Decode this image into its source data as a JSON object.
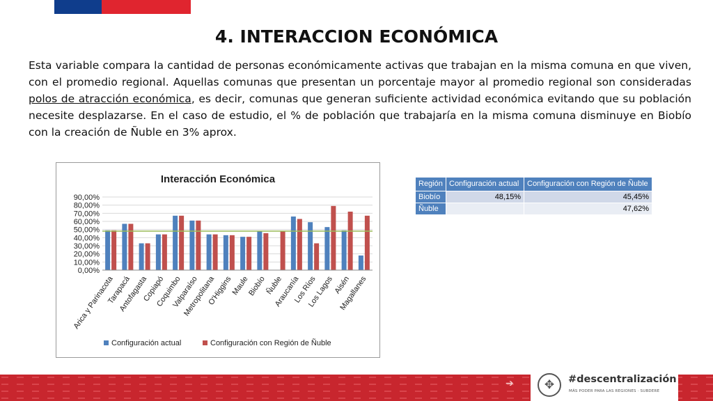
{
  "header": {
    "title": "4. INTERACCION ECONÓMICA"
  },
  "body": {
    "text_before_link": "Esta variable compara la cantidad de personas económicamente activas que trabajan en la misma comuna en que viven, con el promedio regional. Aquellas comunas que presentan un porcentaje mayor al promedio regional son consideradas ",
    "link_text": "polos de atracción económica",
    "text_after_link": ", es decir, comunas que generan suficiente actividad económica evitando que su población necesite desplazarse.    En el caso de estudio, el % de población que trabajaría en la misma comuna disminuye en Biobío con la creación de Ñuble en 3% aprox."
  },
  "chart_data": {
    "type": "bar",
    "title": "Interacción Económica",
    "categories": [
      "Arica y Parinacota",
      "Tarapacá",
      "Antofagasta",
      "Copiapó",
      "Coquimbo",
      "Valparaíso",
      "Metropolitana",
      "O'Higgins",
      "Maule",
      "Biobío",
      "Ñuble",
      "Araucanía",
      "Los Ríos",
      "Los Lagos",
      "Aisén",
      "Magallanes"
    ],
    "series": [
      {
        "name": "Configuración actual",
        "color": "#4f81bd",
        "values": [
          0.49,
          0.57,
          0.33,
          0.44,
          0.67,
          0.61,
          0.44,
          0.43,
          0.41,
          0.4815,
          null,
          0.66,
          0.59,
          0.53,
          0.49,
          0.18
        ]
      },
      {
        "name": "Configuración con Región de Ñuble",
        "color": "#c0504d",
        "values": [
          0.49,
          0.57,
          0.33,
          0.44,
          0.67,
          0.61,
          0.44,
          0.43,
          0.41,
          0.4545,
          0.4762,
          0.63,
          0.33,
          0.79,
          0.72,
          0.67
        ]
      }
    ],
    "reference_line": {
      "value": 0.48,
      "color": "#9bbb59"
    },
    "yticks": [
      "90,00%",
      "80,00%",
      "70,00%",
      "60,00%",
      "50,00%",
      "40,00%",
      "30,00%",
      "20,00%",
      "10,00%",
      "0,00%"
    ],
    "ylim": [
      0,
      0.9
    ],
    "grid": true,
    "legend": "bottom"
  },
  "table": {
    "headers": [
      "Región",
      "Configuración actual",
      "Configuración con Región de Ñuble"
    ],
    "rows": [
      {
        "region": "Biobío",
        "actual": "48,15%",
        "nuble": "45,45%"
      },
      {
        "region": "Ñuble",
        "actual": "",
        "nuble": "47,62%"
      }
    ]
  },
  "footer": {
    "logo_title": "#descentralización",
    "logo_subtitle": "MÁS PODER PARA LAS REGIONES · SUBDERE",
    "logo_icon": "arrows-compass-icon",
    "arrow_icon": "arrow-right-icon",
    "stripe_color": "#c8262e"
  }
}
